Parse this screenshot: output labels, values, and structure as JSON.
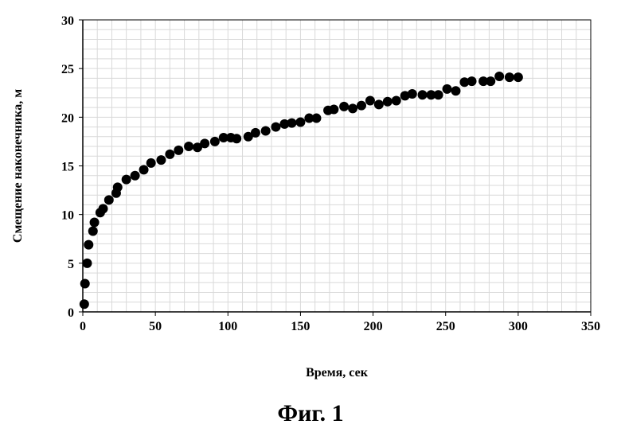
{
  "caption": "Фиг. 1",
  "chart_data": {
    "type": "scatter",
    "xlabel": "Время, сек",
    "ylabel": "Смещение наконечника, м",
    "xlim": [
      0,
      350
    ],
    "ylim": [
      0,
      30
    ],
    "x_ticks": [
      0,
      50,
      100,
      150,
      200,
      250,
      300,
      350
    ],
    "y_ticks": [
      0,
      5,
      10,
      15,
      20,
      25,
      30
    ],
    "grid": true,
    "marker_color": "#000000",
    "series": [
      {
        "points": [
          [
            1,
            0.8
          ],
          [
            1.5,
            2.9
          ],
          [
            3,
            5.0
          ],
          [
            4,
            6.9
          ],
          [
            7,
            8.3
          ],
          [
            8,
            9.2
          ],
          [
            12,
            10.2
          ],
          [
            14,
            10.6
          ],
          [
            18,
            11.5
          ],
          [
            23,
            12.2
          ],
          [
            24,
            12.8
          ],
          [
            30,
            13.6
          ],
          [
            36,
            14.0
          ],
          [
            42,
            14.6
          ],
          [
            47,
            15.3
          ],
          [
            54,
            15.6
          ],
          [
            60,
            16.2
          ],
          [
            66,
            16.6
          ],
          [
            73,
            17.0
          ],
          [
            79,
            16.9
          ],
          [
            84,
            17.3
          ],
          [
            91,
            17.5
          ],
          [
            97,
            17.9
          ],
          [
            102,
            17.9
          ],
          [
            106,
            17.8
          ],
          [
            114,
            18.0
          ],
          [
            119,
            18.4
          ],
          [
            126,
            18.6
          ],
          [
            133,
            19.0
          ],
          [
            139,
            19.3
          ],
          [
            144,
            19.4
          ],
          [
            150,
            19.5
          ],
          [
            156,
            19.9
          ],
          [
            161,
            19.9
          ],
          [
            169,
            20.7
          ],
          [
            173,
            20.8
          ],
          [
            180,
            21.1
          ],
          [
            186,
            20.9
          ],
          [
            192,
            21.2
          ],
          [
            198,
            21.7
          ],
          [
            204,
            21.3
          ],
          [
            210,
            21.6
          ],
          [
            216,
            21.7
          ],
          [
            222,
            22.2
          ],
          [
            227,
            22.4
          ],
          [
            234,
            22.3
          ],
          [
            240,
            22.3
          ],
          [
            245,
            22.3
          ],
          [
            251,
            22.9
          ],
          [
            257,
            22.7
          ],
          [
            263,
            23.6
          ],
          [
            268,
            23.7
          ],
          [
            276,
            23.7
          ],
          [
            281,
            23.7
          ],
          [
            287,
            24.2
          ],
          [
            294,
            24.1
          ],
          [
            300,
            24.1
          ]
        ]
      }
    ]
  }
}
